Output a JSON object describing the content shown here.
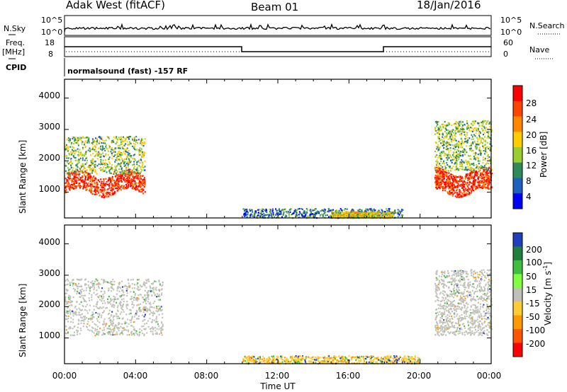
{
  "header": {
    "station": "Adak West (fitACF)",
    "beam": "Beam 01",
    "date": "18/Jan/2016"
  },
  "strip_labels": {
    "nsky": "N.Sky",
    "nsky_ticks": [
      "10^5",
      "10^0"
    ],
    "nsearch": "N.Search",
    "nsearch_ticks": [
      "10^5",
      "10^0"
    ],
    "freq_line1": "Freq.",
    "freq_line2": "[MHz]",
    "freq_ticks": [
      "18",
      "8"
    ],
    "nave": "Nave",
    "nave_ticks": [
      "60",
      "0"
    ],
    "cpid": "CPID",
    "cpid_text": "normalsound (fast) -157 RF"
  },
  "x_axis": {
    "label": "Time UT",
    "ticks": [
      "00:00",
      "04:00",
      "08:00",
      "12:00",
      "16:00",
      "20:00",
      "00:00"
    ]
  },
  "power_panel": {
    "ylabel": "Slant Range [km]",
    "yticks": [
      "4000",
      "3000",
      "2000",
      "1000"
    ],
    "colorbar_label": "Power [dB]",
    "colorbar_ticks": [
      "28",
      "24",
      "20",
      "16",
      "12",
      "8",
      "4"
    ],
    "colors": [
      "#ff0000",
      "#ff4400",
      "#ff8800",
      "#ffcc00",
      "#9acd32",
      "#2e8b57",
      "#1f5fbf",
      "#0000ff"
    ]
  },
  "velocity_panel": {
    "ylabel": "Slant Range [km]",
    "yticks": [
      "4000",
      "3000",
      "2000",
      "1000"
    ],
    "colorbar_label": "Velocity [m s",
    "colorbar_label_sup": "-1",
    "colorbar_label_end": "]",
    "colorbar_ticks": [
      "200",
      "100",
      "50",
      "15",
      "-15",
      "-50",
      "-100",
      "-200"
    ],
    "colors": [
      "#1f3fbf",
      "#1f7f3f",
      "#3fbf3f",
      "#7fff3f",
      "#c0c0b8",
      "#ffcc33",
      "#ff9900",
      "#ff5500",
      "#ff0000"
    ]
  },
  "chart_data": [
    {
      "type": "heatmap",
      "title": "Power",
      "xlabel": "Time UT",
      "ylabel": "Slant Range [km]",
      "xlim": [
        "00:00",
        "24:00"
      ],
      "ylim": [
        180,
        4600
      ],
      "colorbar": {
        "label": "Power [dB]",
        "range": [
          0,
          30
        ],
        "ticks": [
          4,
          8,
          12,
          16,
          20,
          24,
          28
        ]
      },
      "scatter_regions": [
        {
          "time_range_h": [
            0.0,
            4.5
          ],
          "range_km": [
            1000,
            1600
          ],
          "power_db_approx": 28
        },
        {
          "time_range_h": [
            0.0,
            4.5
          ],
          "range_km": [
            1600,
            2800
          ],
          "power_db_approx": 12
        },
        {
          "time_range_h": [
            20.8,
            24.0
          ],
          "range_km": [
            1000,
            1700
          ],
          "power_db_approx": 28
        },
        {
          "time_range_h": [
            20.8,
            24.0
          ],
          "range_km": [
            1700,
            3300
          ],
          "power_db_approx": 12
        },
        {
          "time_range_h": [
            10.0,
            19.0
          ],
          "range_km": [
            200,
            500
          ],
          "power_db_approx": 6
        },
        {
          "time_range_h": [
            15.0,
            18.5
          ],
          "range_km": [
            200,
            400
          ],
          "power_db_approx": 16
        }
      ]
    },
    {
      "type": "heatmap",
      "title": "Velocity",
      "xlabel": "Time UT",
      "ylabel": "Slant Range [km]",
      "xlim": [
        "00:00",
        "24:00"
      ],
      "ylim": [
        180,
        4600
      ],
      "colorbar": {
        "label": "Velocity [m s^-1]",
        "ticks": [
          200,
          100,
          50,
          15,
          -15,
          -50,
          -100,
          -200
        ]
      },
      "scatter_regions": [
        {
          "time_range_h": [
            0.0,
            5.5
          ],
          "range_km": [
            1100,
            2900
          ],
          "velocity_approx": 0
        },
        {
          "time_range_h": [
            20.8,
            24.0
          ],
          "range_km": [
            1100,
            3200
          ],
          "velocity_approx": 0
        },
        {
          "time_range_h": [
            10.0,
            20.0
          ],
          "range_km": [
            200,
            450
          ],
          "velocity_approx": -50
        }
      ]
    }
  ]
}
